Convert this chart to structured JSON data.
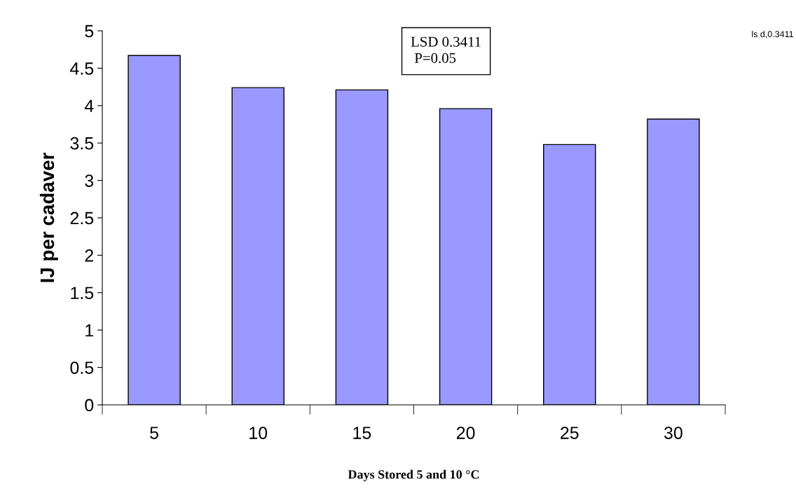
{
  "chart_data": {
    "type": "bar",
    "xlabel": "Days Stored 5 and 10 °C",
    "ylabel": "IJ per cadaver",
    "categories": [
      "5",
      "10",
      "15",
      "20",
      "25",
      "30"
    ],
    "values": [
      4.67,
      4.24,
      4.21,
      3.96,
      3.48,
      3.82
    ],
    "color": "#9999ff",
    "ylim": [
      0,
      5
    ],
    "yticks": [
      0,
      0.5,
      1,
      1.5,
      2,
      2.5,
      3,
      3.5,
      4,
      4.5,
      5
    ],
    "grid": false,
    "legend": false,
    "annotations": [
      "LSD 0.3411\n P=0.05",
      "ls d,0.3411"
    ]
  }
}
